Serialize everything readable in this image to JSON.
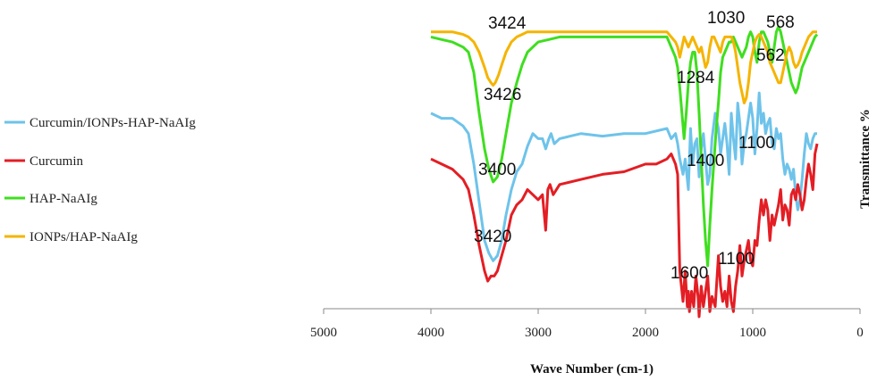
{
  "chart_data": {
    "type": "line",
    "title": "",
    "xlabel": "Wave Number (cm-1)",
    "ylabel": "Transmittance %",
    "xlim": [
      5000,
      0
    ],
    "x_reversed": true,
    "x_ticks": [
      5000,
      4000,
      3000,
      2000,
      1000,
      0
    ],
    "y_ticks_shown": false,
    "grid": false,
    "legend_position": "left",
    "series": [
      {
        "name": "Curcumin/IONPs-HAP-NaAIg",
        "color": "#6ec3ea",
        "x": [
          4000,
          3900,
          3800,
          3700,
          3650,
          3600,
          3550,
          3500,
          3460,
          3420,
          3380,
          3340,
          3300,
          3250,
          3200,
          3150,
          3100,
          3050,
          3000,
          2960,
          2930,
          2900,
          2880,
          2850,
          2800,
          2600,
          2400,
          2200,
          2000,
          1800,
          1760,
          1720,
          1700,
          1680,
          1650,
          1630,
          1600,
          1580,
          1560,
          1540,
          1520,
          1500,
          1480,
          1460,
          1440,
          1420,
          1400,
          1380,
          1350,
          1320,
          1300,
          1280,
          1260,
          1240,
          1220,
          1200,
          1180,
          1160,
          1140,
          1120,
          1100,
          1080,
          1060,
          1040,
          1020,
          1000,
          980,
          960,
          940,
          920,
          900,
          880,
          860,
          840,
          820,
          800,
          780,
          760,
          740,
          720,
          700,
          680,
          660,
          640,
          620,
          600,
          580,
          560,
          540,
          520,
          500,
          480,
          460,
          440,
          420,
          400
        ],
        "y": [
          80,
          78,
          78,
          75,
          72,
          60,
          45,
          30,
          25,
          22,
          24,
          30,
          40,
          50,
          57,
          60,
          67,
          72,
          70,
          70,
          66,
          70,
          72,
          68,
          70,
          72,
          71,
          72,
          72,
          74,
          70,
          72,
          68,
          62,
          56,
          62,
          50,
          74,
          60,
          68,
          70,
          55,
          66,
          72,
          62,
          52,
          56,
          70,
          80,
          74,
          64,
          70,
          76,
          68,
          56,
          80,
          70,
          62,
          84,
          76,
          60,
          68,
          72,
          78,
          84,
          78,
          64,
          74,
          88,
          76,
          80,
          72,
          76,
          78,
          68,
          66,
          74,
          70,
          72,
          62,
          56,
          60,
          58,
          54,
          58,
          48,
          42,
          46,
          54,
          64,
          72,
          68,
          66,
          70,
          72,
          72
        ]
      },
      {
        "name": "Curcumin",
        "color": "#e31e24",
        "x": [
          4000,
          3900,
          3800,
          3700,
          3650,
          3600,
          3550,
          3500,
          3470,
          3440,
          3410,
          3380,
          3340,
          3300,
          3250,
          3200,
          3150,
          3100,
          3050,
          3000,
          2960,
          2930,
          2910,
          2890,
          2860,
          2800,
          2600,
          2400,
          2200,
          2000,
          1900,
          1800,
          1760,
          1720,
          1700,
          1680,
          1660,
          1650,
          1630,
          1610,
          1600,
          1590,
          1570,
          1550,
          1530,
          1510,
          1500,
          1480,
          1460,
          1440,
          1420,
          1400,
          1380,
          1350,
          1320,
          1300,
          1280,
          1260,
          1240,
          1220,
          1200,
          1180,
          1160,
          1140,
          1120,
          1100,
          1080,
          1060,
          1040,
          1020,
          1000,
          980,
          960,
          940,
          920,
          900,
          880,
          860,
          840,
          820,
          800,
          780,
          760,
          740,
          720,
          700,
          680,
          660,
          640,
          620,
          600,
          580,
          560,
          540,
          520,
          500,
          480,
          460,
          440,
          420,
          400
        ],
        "y": [
          62,
          60,
          58,
          54,
          50,
          40,
          28,
          18,
          14,
          16,
          16,
          18,
          24,
          30,
          40,
          44,
          46,
          50,
          48,
          46,
          48,
          34,
          50,
          52,
          48,
          52,
          54,
          56,
          57,
          60,
          60,
          62,
          64,
          60,
          56,
          18,
          10,
          6,
          18,
          4,
          10,
          2,
          10,
          4,
          16,
          8,
          0,
          12,
          4,
          10,
          16,
          2,
          8,
          4,
          24,
          12,
          6,
          10,
          4,
          16,
          6,
          2,
          12,
          18,
          28,
          16,
          22,
          26,
          30,
          22,
          20,
          30,
          28,
          38,
          46,
          40,
          46,
          42,
          30,
          40,
          36,
          40,
          44,
          50,
          38,
          44,
          42,
          36,
          48,
          50,
          46,
          52,
          48,
          42,
          46,
          54,
          60,
          56,
          50,
          64,
          68
        ]
      },
      {
        "name": "HAP-NaAIg",
        "color": "#3fde1f",
        "x": [
          4000,
          3900,
          3800,
          3700,
          3650,
          3600,
          3550,
          3500,
          3460,
          3420,
          3380,
          3340,
          3300,
          3250,
          3200,
          3150,
          3100,
          3000,
          2900,
          2800,
          2600,
          2400,
          2200,
          2000,
          1800,
          1760,
          1720,
          1700,
          1680,
          1660,
          1640,
          1620,
          1600,
          1580,
          1560,
          1540,
          1520,
          1500,
          1480,
          1460,
          1440,
          1420,
          1400,
          1380,
          1360,
          1340,
          1320,
          1300,
          1280,
          1260,
          1240,
          1220,
          1200,
          1180,
          1160,
          1140,
          1120,
          1100,
          1080,
          1060,
          1040,
          1020,
          1000,
          980,
          960,
          940,
          920,
          900,
          880,
          860,
          840,
          820,
          800,
          780,
          760,
          740,
          720,
          700,
          680,
          660,
          640,
          620,
          600,
          580,
          560,
          540,
          520,
          500,
          480,
          460,
          440,
          420,
          400
        ],
        "y": [
          110,
          109,
          108,
          106,
          104,
          96,
          80,
          66,
          58,
          53,
          55,
          62,
          72,
          84,
          92,
          99,
          104,
          108,
          109,
          110,
          110,
          110,
          110,
          110,
          110,
          106,
          102,
          98,
          90,
          80,
          70,
          80,
          92,
          100,
          104,
          104,
          96,
          80,
          62,
          44,
          30,
          20,
          36,
          50,
          62,
          74,
          84,
          96,
          102,
          104,
          106,
          108,
          108,
          110,
          108,
          106,
          104,
          102,
          104,
          106,
          110,
          112,
          110,
          104,
          100,
          108,
          112,
          112,
          110,
          108,
          104,
          100,
          106,
          112,
          114,
          112,
          108,
          104,
          100,
          96,
          92,
          90,
          88,
          90,
          94,
          98,
          100,
          102,
          104,
          106,
          108,
          110,
          111
        ]
      },
      {
        "name": "IONPs/HAP-NaAIg",
        "color": "#f5b400",
        "x": [
          4000,
          3900,
          3800,
          3700,
          3650,
          3600,
          3550,
          3500,
          3470,
          3440,
          3420,
          3400,
          3370,
          3340,
          3300,
          3250,
          3200,
          3150,
          3100,
          3000,
          2900,
          2800,
          2600,
          2400,
          2200,
          2000,
          1800,
          1760,
          1720,
          1700,
          1680,
          1660,
          1640,
          1620,
          1600,
          1580,
          1560,
          1540,
          1520,
          1500,
          1480,
          1460,
          1440,
          1420,
          1400,
          1380,
          1360,
          1340,
          1320,
          1300,
          1280,
          1260,
          1240,
          1220,
          1200,
          1180,
          1160,
          1140,
          1120,
          1100,
          1080,
          1060,
          1040,
          1020,
          1000,
          980,
          960,
          940,
          920,
          900,
          880,
          860,
          840,
          820,
          800,
          780,
          760,
          740,
          720,
          700,
          680,
          660,
          640,
          620,
          600,
          580,
          560,
          540,
          520,
          500,
          480,
          460,
          440,
          420,
          400
        ],
        "y": [
          112,
          112,
          112,
          111,
          110,
          108,
          104,
          98,
          94,
          92,
          91,
          92,
          95,
          99,
          104,
          108,
          110,
          111,
          112,
          112,
          112,
          112,
          112,
          112,
          112,
          112,
          112,
          110,
          108,
          106,
          102,
          106,
          110,
          108,
          106,
          108,
          110,
          108,
          106,
          104,
          106,
          102,
          98,
          100,
          106,
          110,
          110,
          108,
          106,
          104,
          108,
          110,
          110,
          110,
          110,
          108,
          104,
          98,
          92,
          88,
          84,
          86,
          92,
          100,
          104,
          108,
          110,
          111,
          110,
          108,
          106,
          104,
          100,
          98,
          96,
          94,
          92,
          92,
          96,
          100,
          104,
          106,
          104,
          100,
          98,
          99,
          101,
          104,
          106,
          108,
          110,
          111,
          112,
          112,
          112
        ]
      }
    ],
    "annotations": [
      {
        "text": "3424",
        "series": "IONPs/HAP-NaAIg"
      },
      {
        "text": "1030",
        "series": "IONPs/HAP-NaAIg"
      },
      {
        "text": "568",
        "series": "IONPs/HAP-NaAIg"
      },
      {
        "text": "562",
        "series": "HAP-NaAIg"
      },
      {
        "text": "3426",
        "series": "Curcumin/IONPs-HAP-NaAIg"
      },
      {
        "text": "1284",
        "series": "Curcumin/IONPs-HAP-NaAIg"
      },
      {
        "text": "1100",
        "series": "Curcumin/IONPs-HAP-NaAIg"
      },
      {
        "text": "3400",
        "series": "HAP-NaAIg"
      },
      {
        "text": "1400",
        "series": "HAP-NaAIg"
      },
      {
        "text": "3420",
        "series": "Curcumin"
      },
      {
        "text": "1100",
        "series": "Curcumin"
      },
      {
        "text": "1600",
        "series": "Curcumin"
      }
    ]
  }
}
